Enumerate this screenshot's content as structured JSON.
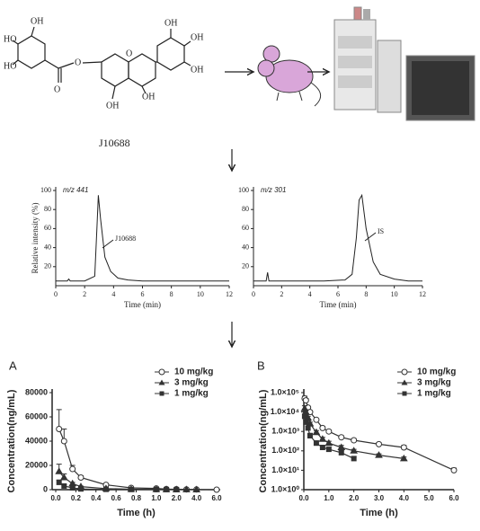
{
  "structure": {
    "labels": [
      "HO",
      "OH",
      "HO",
      "O",
      "O",
      "O",
      "OH",
      "OH",
      "OH",
      "OH",
      "OH"
    ],
    "compound": "J10688"
  },
  "chart_data": [
    {
      "type": "line",
      "annotation": "m/z 441",
      "peak_label": "J10688",
      "xlabel": "Time (min)",
      "ylabel": "Relative intensity (%)",
      "x": [
        0,
        0.8,
        0.9,
        1,
        2,
        2.7,
        2.85,
        2.95,
        3.1,
        3.4,
        3.8,
        4.3,
        5,
        6,
        8,
        10,
        12
      ],
      "values": [
        5,
        5,
        7,
        5,
        5,
        10,
        60,
        95,
        70,
        30,
        15,
        8,
        6,
        5,
        5,
        5,
        5
      ],
      "color": "#222222",
      "xlim": [
        0,
        12
      ],
      "xticks": [
        0,
        2,
        4,
        6,
        8,
        10,
        12
      ],
      "ylim": [
        0,
        100
      ],
      "yticks": [
        20,
        40,
        60,
        80,
        100
      ]
    },
    {
      "type": "line",
      "annotation": "m/z 301",
      "peak_label": "IS",
      "xlabel": "Time (min)",
      "x": [
        0,
        0.9,
        1,
        1.1,
        2,
        5,
        6.5,
        7,
        7.3,
        7.5,
        7.7,
        8,
        8.5,
        9,
        10,
        11,
        12
      ],
      "values": [
        5,
        5,
        14,
        5,
        5,
        5,
        6,
        12,
        50,
        90,
        95,
        60,
        25,
        12,
        7,
        5,
        5
      ],
      "color": "#222222",
      "xlim": [
        0,
        12
      ],
      "xticks": [
        0,
        2,
        4,
        6,
        8,
        10,
        12
      ],
      "ylim": [
        0,
        100
      ],
      "yticks": [
        20,
        40,
        60,
        80,
        100
      ]
    },
    {
      "type": "line",
      "panel": "A",
      "xlabel": "Time (h)",
      "ylabel": "Concentration(ng/mL)",
      "xscale": "segmented",
      "x": [
        0.033,
        0.083,
        0.167,
        0.25,
        0.5,
        0.75,
        1,
        1.5,
        2,
        3,
        4,
        6
      ],
      "series": [
        {
          "name": "10 mg/kg",
          "color": "#333333",
          "marker": "open-circle",
          "values": [
            50000,
            40000,
            17000,
            10000,
            4000,
            1500,
            1000,
            500,
            350,
            220,
            150,
            10
          ],
          "errors": [
            16000,
            10000,
            3000,
            1500,
            500,
            300,
            200,
            100,
            80,
            50,
            40,
            3
          ]
        },
        {
          "name": "3 mg/kg",
          "color": "#333333",
          "marker": "triangle",
          "values": [
            15000,
            10000,
            5000,
            2500,
            900,
            400,
            250,
            150,
            100,
            60,
            40,
            null
          ],
          "errors": [
            6000,
            3000,
            1000,
            500,
            200,
            100,
            60,
            40,
            20,
            10,
            8,
            null
          ]
        },
        {
          "name": "1 mg/kg",
          "color": "#333333",
          "marker": "square",
          "values": [
            6000,
            3000,
            1500,
            600,
            250,
            150,
            120,
            80,
            40,
            null,
            null,
            null
          ],
          "errors": [
            2000,
            1000,
            400,
            200,
            80,
            40,
            30,
            20,
            10,
            null,
            null,
            null
          ]
        }
      ],
      "xticks": [
        {
          "value": 0,
          "label": "0.0"
        },
        0.2,
        0.4,
        0.6,
        0.8,
        {
          "value": 1,
          "label": "1.0"
        },
        {
          "value": 2,
          "label": "2.0"
        },
        {
          "value": 4,
          "label": "4.0"
        },
        {
          "value": 6,
          "label": "6.0"
        }
      ],
      "ylim": [
        0,
        80000
      ],
      "yticks": [
        0,
        20000,
        40000,
        60000,
        80000
      ]
    },
    {
      "type": "line",
      "panel": "B",
      "xlabel": "Time (h)",
      "ylabel": "Concentration(ng/mL)",
      "yscale": "log",
      "x": [
        0.033,
        0.083,
        0.167,
        0.25,
        0.5,
        0.75,
        1,
        1.5,
        2,
        3,
        4,
        6
      ],
      "series": [
        {
          "name": "10 mg/kg",
          "color": "#333333",
          "marker": "open-circle",
          "values": [
            50000,
            40000,
            17000,
            10000,
            4000,
            1500,
            1000,
            500,
            350,
            220,
            150,
            10
          ],
          "errors": [
            16000,
            10000,
            3000,
            1500,
            500,
            300,
            200,
            100,
            80,
            50,
            40,
            3
          ]
        },
        {
          "name": "3 mg/kg",
          "color": "#333333",
          "marker": "triangle",
          "values": [
            15000,
            10000,
            5000,
            2500,
            900,
            400,
            250,
            150,
            100,
            60,
            40,
            null
          ],
          "errors": [
            6000,
            3000,
            1000,
            500,
            200,
            100,
            60,
            40,
            20,
            10,
            8,
            null
          ]
        },
        {
          "name": "1 mg/kg",
          "color": "#333333",
          "marker": "square",
          "values": [
            6000,
            3000,
            1500,
            600,
            250,
            150,
            120,
            80,
            40,
            null,
            null,
            null
          ],
          "errors": [
            2000,
            1000,
            400,
            200,
            80,
            40,
            30,
            20,
            10,
            null,
            null,
            null
          ]
        }
      ],
      "xlim": [
        0,
        6
      ],
      "xticks": [
        {
          "value": 0,
          "label": "0.0"
        },
        {
          "value": 1,
          "label": "1.0"
        },
        {
          "value": 2,
          "label": "2.0"
        },
        {
          "value": 3,
          "label": "3.0"
        },
        {
          "value": 4,
          "label": "4.0"
        },
        {
          "value": 5,
          "label": "5.0"
        },
        {
          "value": 6,
          "label": "6.0"
        }
      ],
      "ylim": [
        1,
        100000
      ],
      "yticks": [
        {
          "value": 1,
          "label": "1.0×10⁰"
        },
        {
          "value": 10,
          "label": "1.0×10¹"
        },
        {
          "value": 100,
          "label": "1.0×10²"
        },
        {
          "value": 1000,
          "label": "1.0×10³"
        },
        {
          "value": 10000,
          "label": "1.0×10⁴"
        },
        {
          "value": 100000,
          "label": "1.0×10⁵"
        }
      ]
    }
  ]
}
